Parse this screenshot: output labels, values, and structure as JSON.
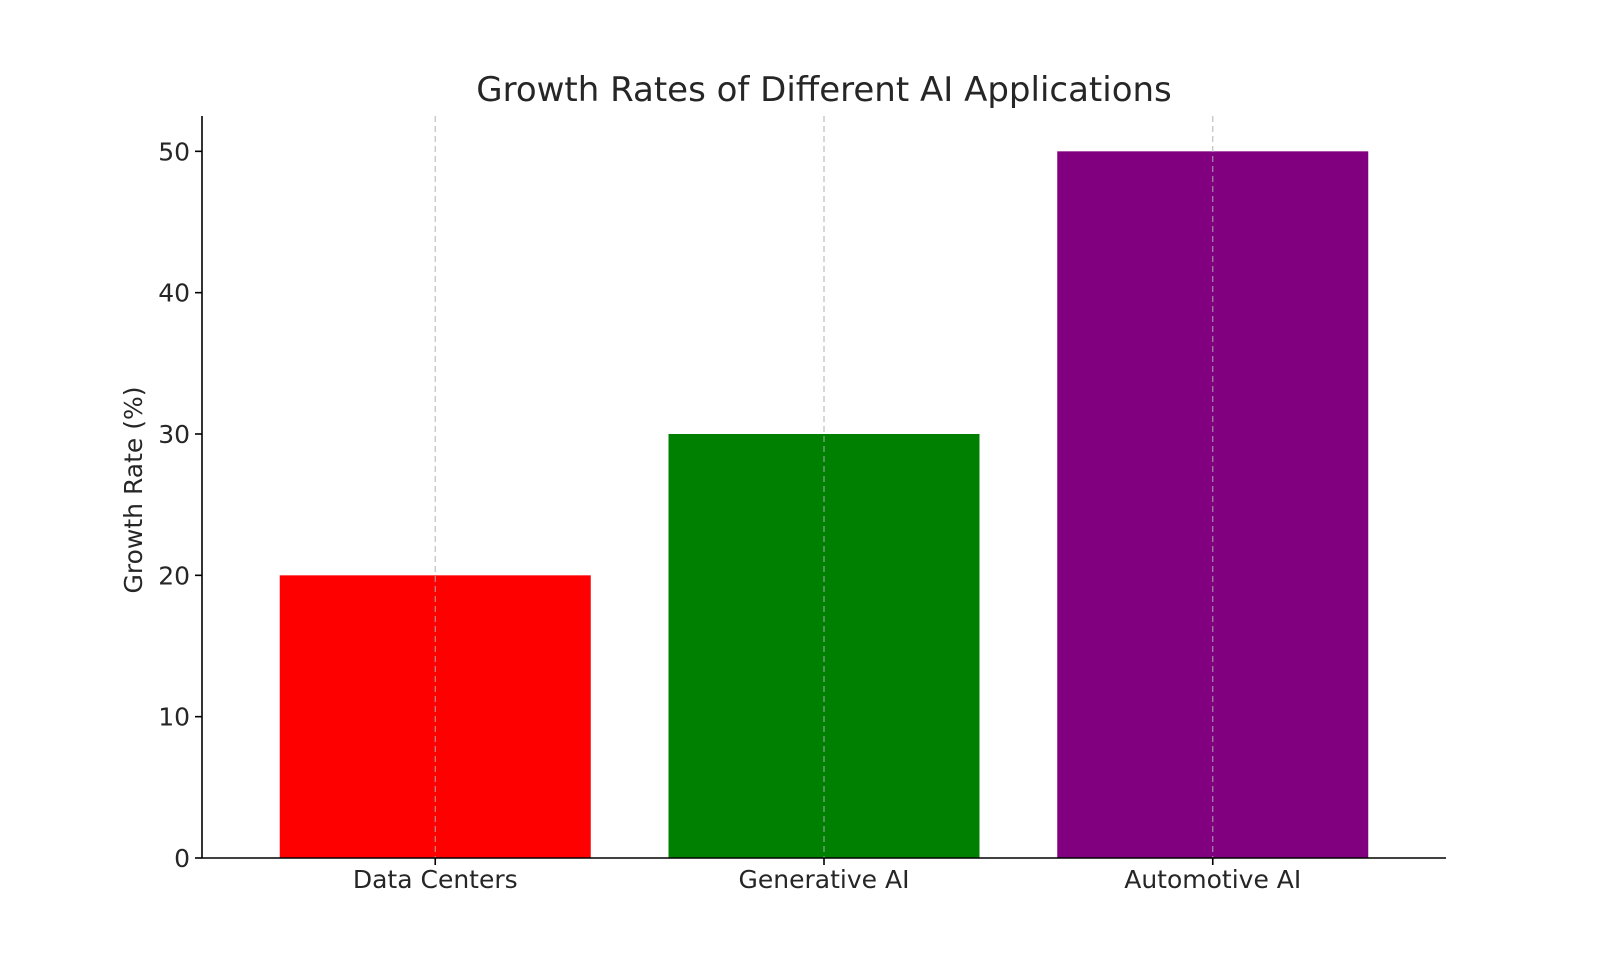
{
  "chart_data": {
    "type": "bar",
    "title": "Growth Rates of Different AI Applications",
    "xlabel": "",
    "ylabel": "Growth Rate (%)",
    "categories": [
      "Data Centers",
      "Generative AI",
      "Automotive AI"
    ],
    "values": [
      20,
      30,
      50
    ],
    "colors": [
      "#ff0000",
      "#008000",
      "#800080"
    ],
    "ylim": [
      0,
      52.5
    ],
    "yticks": [
      0,
      10,
      20,
      30,
      40,
      50
    ],
    "grid": "vertical-dashed",
    "legend": "none"
  }
}
